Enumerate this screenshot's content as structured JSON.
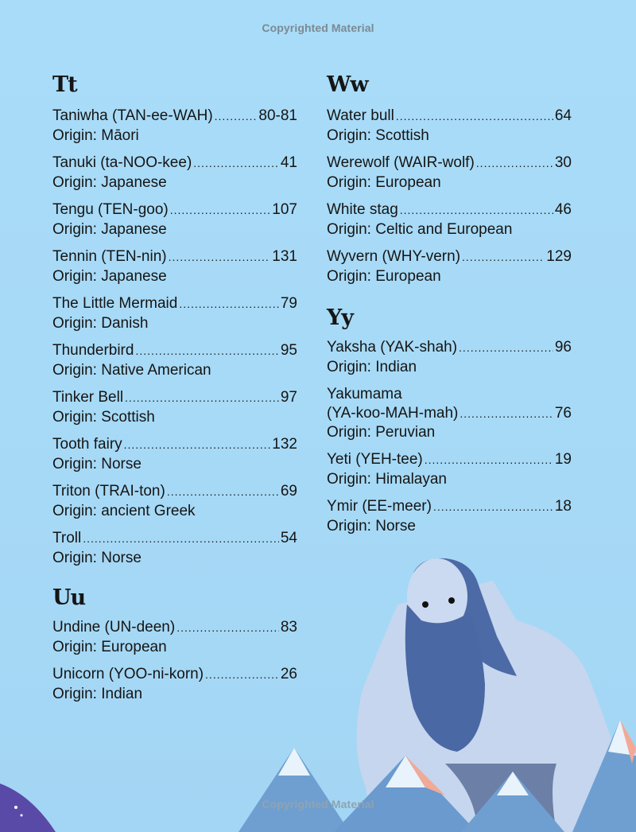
{
  "watermark_top": "Copyrighted Material",
  "watermark_bottom": "Copyrighted Material",
  "left_column": {
    "sections": [
      {
        "letter": "Tt",
        "entries": [
          {
            "name": "Taniwha (TAN-ee-WAH)",
            "page": "80-81",
            "origin": "Origin: Māori"
          },
          {
            "name": "Tanuki (ta-NOO-kee)",
            "page": "41",
            "origin": "Origin: Japanese"
          },
          {
            "name": "Tengu (TEN-goo)",
            "page": "107",
            "origin": "Origin: Japanese"
          },
          {
            "name": "Tennin (TEN-nin)",
            "page": "131",
            "origin": "Origin: Japanese"
          },
          {
            "name": "The Little Mermaid",
            "page": "79",
            "origin": "Origin: Danish"
          },
          {
            "name": "Thunderbird",
            "page": "95",
            "origin": "Origin: Native American"
          },
          {
            "name": "Tinker Bell",
            "page": "97",
            "origin": "Origin: Scottish"
          },
          {
            "name": "Tooth fairy",
            "page": "132",
            "origin": "Origin: Norse"
          },
          {
            "name": "Triton (TRAI-ton)",
            "page": "69",
            "origin": "Origin: ancient Greek"
          },
          {
            "name": "Troll",
            "page": "54",
            "origin": "Origin: Norse"
          }
        ]
      },
      {
        "letter": "Uu",
        "entries": [
          {
            "name": "Undine (UN-deen)",
            "page": "83",
            "origin": "Origin: European"
          },
          {
            "name": "Unicorn (YOO-ni-korn)",
            "page": "26",
            "origin": "Origin: Indian"
          }
        ]
      }
    ]
  },
  "right_column": {
    "sections": [
      {
        "letter": "Ww",
        "entries": [
          {
            "name": "Water bull",
            "page": "64",
            "origin": "Origin: Scottish"
          },
          {
            "name": "Werewolf (WAIR-wolf)",
            "page": "30",
            "origin": "Origin: European"
          },
          {
            "name": "White stag",
            "page": "46",
            "origin": "Origin: Celtic and European"
          },
          {
            "name": "Wyvern (WHY-vern)",
            "page": "129",
            "origin": "Origin: European"
          }
        ]
      },
      {
        "letter": "Yy",
        "entries": [
          {
            "name": "Yaksha (YAK-shah)",
            "page": "96",
            "origin": "Origin: Indian"
          },
          {
            "name_line1": "Yakumama",
            "name": "(YA-koo-MAH-mah)",
            "page": "76",
            "origin": "Origin: Peruvian"
          },
          {
            "name": "Yeti (YEH-tee)",
            "page": "19",
            "origin": "Origin: Himalayan"
          },
          {
            "name": "Ymir (EE-meer)",
            "page": "18",
            "origin": "Origin: Norse"
          }
        ]
      }
    ]
  },
  "illustration": {
    "subject": "giant-ymir-with-mountains",
    "colors": {
      "skin": "#c9d9ef",
      "beard": "#4a6aa6",
      "mountain": "#6f9fd0",
      "snow": "#e9f3fb",
      "peak_accent": "#f2a996"
    }
  }
}
